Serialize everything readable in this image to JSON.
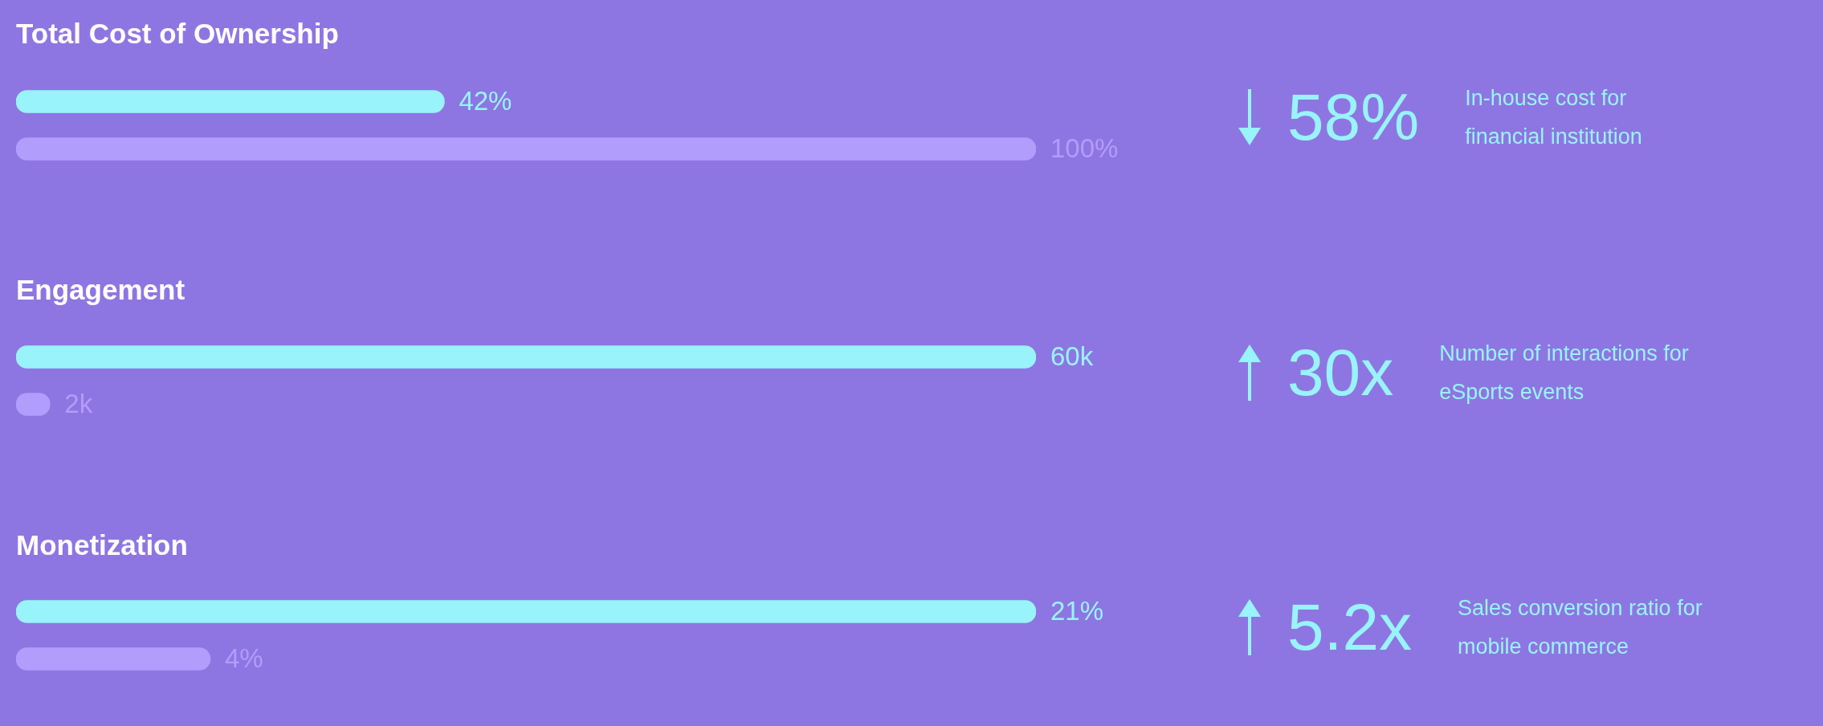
{
  "chart_data": [
    {
      "type": "bar",
      "orientation": "horizontal",
      "title": "Total Cost of Ownership",
      "categories": [
        null,
        null
      ],
      "values": [
        42,
        100
      ],
      "colors": [
        "#98f3fb",
        "#b09dfc"
      ],
      "value_labels": [
        "42%",
        "100%"
      ],
      "tick_labels": false
    },
    {
      "type": "other",
      "title": "58%",
      "subtitle": "In-house cost for\nfinancial institution"
    },
    {
      "type": "bar",
      "orientation": "horizontal",
      "title": "Engagement",
      "categories": [
        null,
        null
      ],
      "values": [
        60,
        2
      ],
      "colors": [
        "#98f3fb",
        "#b09dfc"
      ],
      "value_labels": [
        "60k",
        "2k"
      ],
      "tick_labels": false
    },
    {
      "type": "other",
      "title": "30x",
      "subtitle": "Number of interactions for\neSports events"
    },
    {
      "type": "bar",
      "orientation": "horizontal",
      "title": "Monetization",
      "categories": [
        null,
        null
      ],
      "values": [
        21,
        4
      ],
      "colors": [
        "#98f3fb",
        "#b09dfc"
      ],
      "value_labels": [
        "21%",
        "4%"
      ],
      "tick_labels": false
    },
    {
      "type": "other",
      "title": "5.2x",
      "subtitle": "Sales conversion ratio for\nmobile commerce"
    }
  ]
}
